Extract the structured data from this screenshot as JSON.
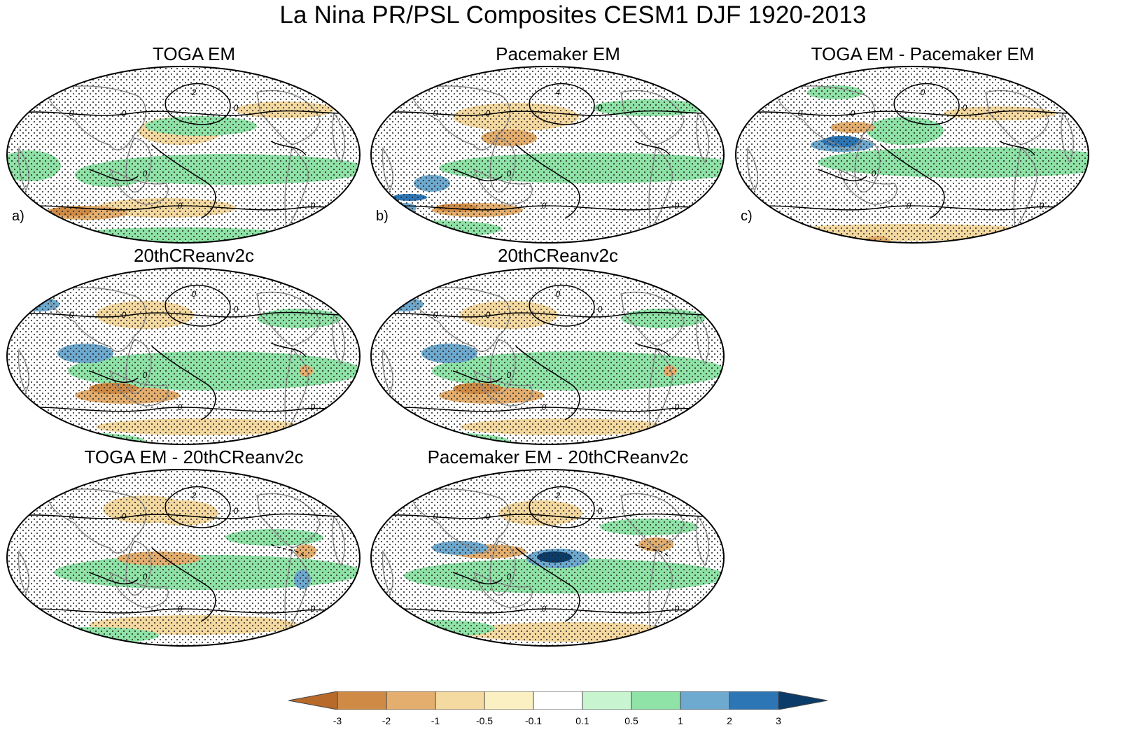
{
  "title": "La Nina PR/PSL Composites CESM1 DJF 1920-2013",
  "panels": [
    {
      "id": "a",
      "title": "TOGA EM",
      "label": "a)",
      "variant": 0
    },
    {
      "id": "b",
      "title": "Pacemaker EM",
      "label": "b)",
      "variant": 1
    },
    {
      "id": "c",
      "title": "TOGA EM - Pacemaker EM",
      "label": "c)",
      "variant": 2
    },
    {
      "id": "d",
      "title": "20thCReanv2c",
      "label": "",
      "variant": 3
    },
    {
      "id": "e",
      "title": "20thCReanv2c",
      "label": "",
      "variant": 3
    },
    {
      "id": "f",
      "title": "TOGA EM - 20thCReanv2c",
      "label": "",
      "variant": 4
    },
    {
      "id": "g",
      "title": "Pacemaker EM - 20thCReanv2c",
      "label": "",
      "variant": 5
    }
  ],
  "colorbar": {
    "levels": [
      "-3",
      "-2",
      "-1",
      "-0.5",
      "-0.1",
      "0.1",
      "0.5",
      "1",
      "2",
      "3"
    ],
    "colors": [
      "#b86a2a",
      "#cf8b45",
      "#e4ae6e",
      "#f4d9a0",
      "#fbf0c2",
      "#ffffff",
      "#c8f5cf",
      "#8fe3a7",
      "#6ea9cf",
      "#2c76b5",
      "#0c3c6a"
    ]
  },
  "contour_labels": [
    "0",
    "2",
    "4",
    "-2"
  ]
}
